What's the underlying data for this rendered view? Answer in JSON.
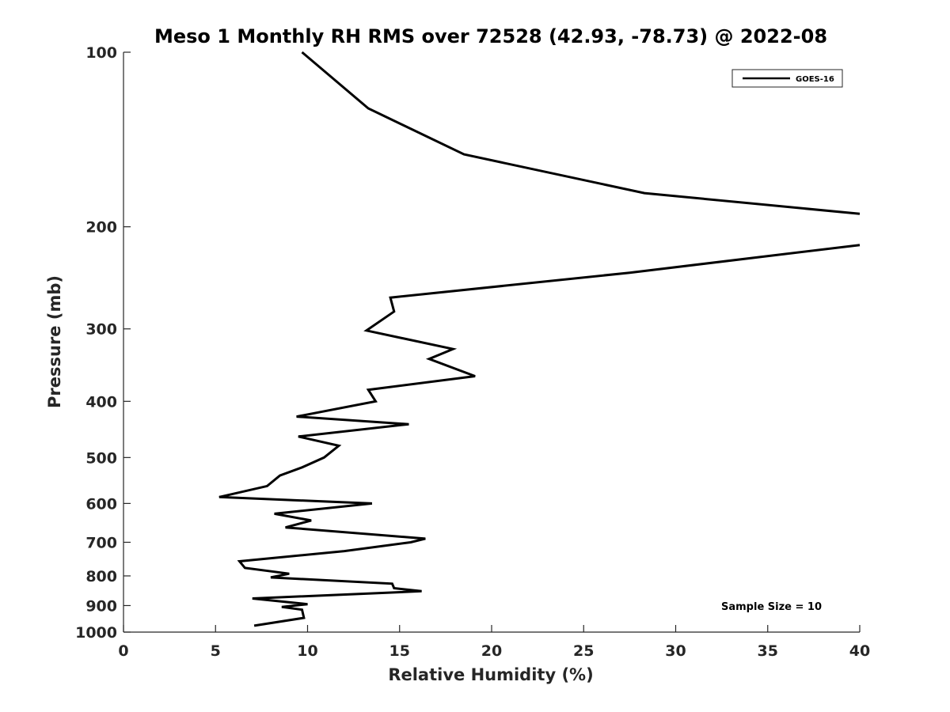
{
  "chart_data": {
    "type": "line",
    "title": "Meso 1 Monthly RH RMS over 72528 (42.93, -78.73) @ 2022-08",
    "xlabel": "Relative Humidity (%)",
    "ylabel": "Pressure (mb)",
    "xlim": [
      0,
      40
    ],
    "ylim": [
      1000,
      100
    ],
    "yscale": "log",
    "y_reversed": true,
    "x_ticks": [
      0,
      5,
      10,
      15,
      20,
      25,
      30,
      35,
      40
    ],
    "y_ticks": [
      100,
      200,
      300,
      400,
      500,
      600,
      700,
      800,
      900,
      1000
    ],
    "grid": false,
    "legend_position": "top-right",
    "annotation": "Sample Size = 10",
    "series": [
      {
        "name": "GOES-16",
        "color": "#000000",
        "segments": [
          [
            [
              9.7,
              100
            ],
            [
              13.3,
              125
            ],
            [
              18.5,
              150
            ],
            [
              28.3,
              175
            ],
            [
              40,
              190
            ]
          ],
          [
            [
              40,
              215
            ],
            [
              27.5,
              240
            ],
            [
              14.5,
              265
            ],
            [
              14.7,
              280
            ],
            [
              13.2,
              302
            ],
            [
              17.9,
              325
            ],
            [
              16.6,
              338
            ],
            [
              19.1,
              362
            ],
            [
              13.3,
              382
            ],
            [
              13.7,
              400
            ],
            [
              9.4,
              425
            ],
            [
              15.5,
              438
            ],
            [
              9.5,
              460
            ],
            [
              11.7,
              477
            ],
            [
              10.9,
              500
            ],
            [
              9.7,
              520
            ],
            [
              8.5,
              537
            ],
            [
              7.8,
              560
            ],
            [
              5.2,
              585
            ],
            [
              13.5,
              600
            ],
            [
              8.2,
              625
            ],
            [
              10.2,
              642
            ],
            [
              8.8,
              660
            ],
            [
              16.4,
              690
            ],
            [
              15.6,
              700
            ],
            [
              12.0,
              725
            ],
            [
              6.3,
              755
            ],
            [
              6.6,
              775
            ],
            [
              9.0,
              793
            ],
            [
              8.0,
              805
            ],
            [
              14.6,
              825
            ],
            [
              14.7,
              840
            ],
            [
              16.2,
              850
            ],
            [
              7.0,
              875
            ],
            [
              10.0,
              895
            ],
            [
              8.6,
              905
            ],
            [
              9.7,
              915
            ],
            [
              9.8,
              945
            ],
            [
              7.1,
              975
            ]
          ]
        ]
      }
    ]
  }
}
